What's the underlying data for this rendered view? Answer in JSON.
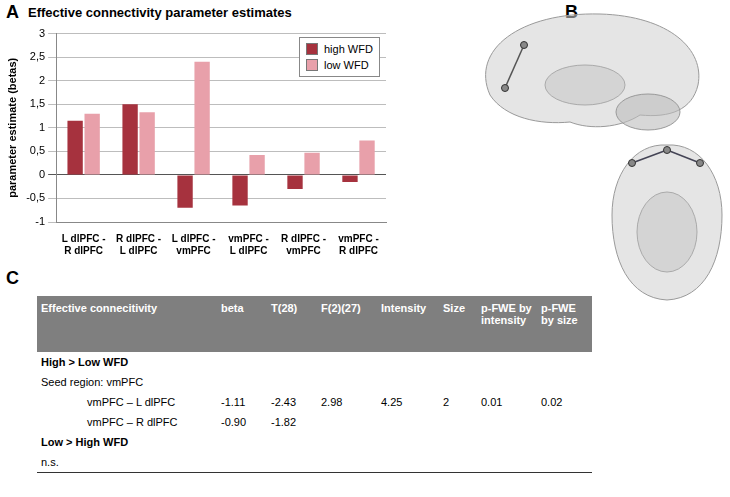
{
  "chart_data": {
    "type": "bar",
    "title": "Effective connectivity parameter estimates",
    "y_label": "parameter estimate (betas)",
    "categories": [
      "L dlPFC - R dlPFC",
      "R dlPFC - L dlPFC",
      "L dlPFC - vmPFC",
      "vmPFC - L dlPFC",
      "R dlPFC - vmPFC",
      "vmPFC - R dlPFC"
    ],
    "series": [
      {
        "name": "high WFD",
        "color": "#a6323e",
        "values": [
          1.15,
          1.5,
          -0.7,
          -0.65,
          -0.3,
          -0.15
        ]
      },
      {
        "name": "low WFD",
        "color": "#e8a0aa",
        "values": [
          1.3,
          1.33,
          2.4,
          0.42,
          0.47,
          0.73
        ]
      }
    ],
    "ylim": [
      -1,
      3
    ],
    "yticks": [
      -1,
      {
        "value": -0.5,
        "label": "-0,5"
      },
      0,
      {
        "value": 0.5,
        "label": "0,5"
      },
      1,
      {
        "value": 1.5,
        "label": "1,5"
      },
      2,
      {
        "value": 2.5,
        "label": "2,5"
      },
      3
    ],
    "grid": true,
    "legend": "top-right"
  },
  "panel_labels": [
    "A",
    "B",
    "C"
  ],
  "table": {
    "columns": [
      "Effective connecitivity",
      "beta",
      "T(28)",
      "F(2)(27)",
      "Intensity",
      "Size",
      "p-FWE by intensity",
      "p-FWE by size"
    ],
    "sections": [
      {
        "title": "High > Low WFD",
        "seed": "Seed region: vmPFC",
        "rows": [
          [
            "vmPFC – L dlPFC",
            "-1.11",
            "-2.43",
            "2.98",
            "4.25",
            "2",
            "0.01",
            "0.02"
          ],
          [
            "vmPFC – R dlPFC",
            "-0.90",
            "-1.82"
          ]
        ]
      },
      {
        "title": "Low > High WFD",
        "rows": [
          [
            "n.s."
          ]
        ]
      }
    ]
  }
}
